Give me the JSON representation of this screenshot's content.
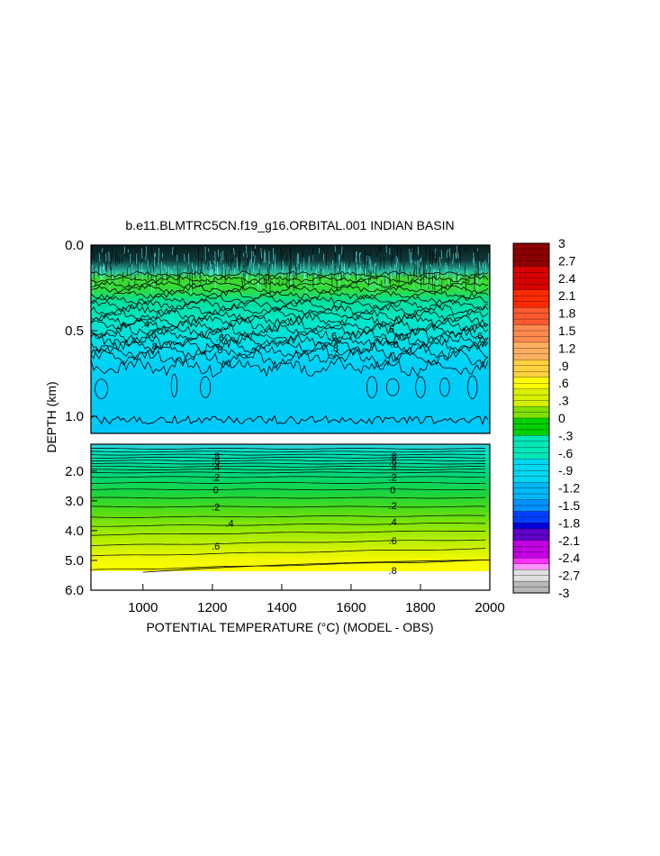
{
  "chart_data": {
    "type": "heatmap",
    "title": "b.e11.BLMTRC5CN.f19_g16.ORBITAL.001 INDIAN BASIN",
    "xlabel": "POTENTIAL TEMPERATURE (°C) (MODEL - OBS)",
    "ylabel": "DEPTH (km)",
    "x_ticks": [
      "1000",
      "1200",
      "1400",
      "1600",
      "1800",
      "2000"
    ],
    "x_tick_values": [
      1000,
      1200,
      1400,
      1600,
      1800,
      2000
    ],
    "xlim": [
      850,
      2000
    ],
    "upper_panel": {
      "ylim": [
        0.0,
        1.1
      ],
      "y_ticks": [
        "0.0",
        "0.5",
        "1.0"
      ],
      "y_tick_values": [
        0.0,
        0.5,
        1.0
      ],
      "contour_labels": [
        {
          "text": ".4",
          "x": 1007,
          "y": 0.46
        },
        {
          "text": ".6",
          "x": 1027,
          "y": 0.52
        },
        {
          "text": ".8",
          "x": 1030,
          "y": 0.59
        },
        {
          "text": ".6",
          "x": 1222,
          "y": 0.54
        },
        {
          "text": ".8",
          "x": 1218,
          "y": 0.61
        },
        {
          "text": ".6",
          "x": 1547,
          "y": 0.53
        },
        {
          "text": ".8",
          "x": 1552,
          "y": 0.6
        },
        {
          "text": ".6",
          "x": 1713,
          "y": 0.49
        },
        {
          "text": ".8",
          "x": 1725,
          "y": 0.58
        },
        {
          "text": ".6",
          "x": 1968,
          "y": 0.53
        }
      ]
    },
    "lower_panel": {
      "ylim": [
        1.1,
        6.0
      ],
      "y_ticks": [
        "2.0",
        "3.0",
        "4.0",
        "5.0",
        "6.0"
      ],
      "y_tick_values": [
        2.0,
        3.0,
        4.0,
        5.0,
        6.0
      ],
      "bottom_of_data_km": 5.4,
      "contour_labels": [
        {
          "text": ".8",
          "x": 1210,
          "y": 1.5
        },
        {
          "text": ".6",
          "x": 1210,
          "y": 1.68
        },
        {
          "text": ".4",
          "x": 1210,
          "y": 1.86
        },
        {
          "text": ".2",
          "x": 1210,
          "y": 2.2
        },
        {
          "text": "0",
          "x": 1210,
          "y": 2.62
        },
        {
          "text": ".2",
          "x": 1210,
          "y": 3.2
        },
        {
          "text": ".4",
          "x": 1250,
          "y": 3.75
        },
        {
          "text": ".6",
          "x": 1210,
          "y": 4.52
        },
        {
          "text": ".8",
          "x": 1720,
          "y": 1.5
        },
        {
          "text": ".6",
          "x": 1720,
          "y": 1.68
        },
        {
          "text": ".4",
          "x": 1720,
          "y": 1.86
        },
        {
          "text": ".2",
          "x": 1720,
          "y": 2.2
        },
        {
          "text": "0",
          "x": 1720,
          "y": 2.62
        },
        {
          "text": ".2",
          "x": 1720,
          "y": 3.15
        },
        {
          "text": ".4",
          "x": 1720,
          "y": 3.7
        },
        {
          "text": ".6",
          "x": 1720,
          "y": 4.33
        },
        {
          "text": ".8",
          "x": 1720,
          "y": 5.33
        }
      ]
    },
    "colorbar": {
      "labels": [
        "3",
        "2.7",
        "2.4",
        "2.1",
        "1.8",
        "1.5",
        "1.2",
        ".9",
        ".6",
        ".3",
        "0",
        "-.3",
        "-.6",
        "-.9",
        "-1.2",
        "-1.5",
        "-1.8",
        "-2.1",
        "-2.4",
        "-2.7",
        "-3"
      ],
      "values": [
        3,
        2.7,
        2.4,
        2.1,
        1.8,
        1.5,
        1.2,
        0.9,
        0.6,
        0.3,
        0,
        -0.3,
        -0.6,
        -0.9,
        -1.2,
        -1.5,
        -1.8,
        -2.1,
        -2.4,
        -2.7,
        -3
      ],
      "range": [
        -3,
        3
      ],
      "color_stops": [
        {
          "v": 3.0,
          "c": "#8c0000"
        },
        {
          "v": 2.6,
          "c": "#d80000"
        },
        {
          "v": 2.2,
          "c": "#ff2a00"
        },
        {
          "v": 1.9,
          "c": "#ff5a30"
        },
        {
          "v": 1.6,
          "c": "#ff8a50"
        },
        {
          "v": 1.3,
          "c": "#ffb060"
        },
        {
          "v": 1.0,
          "c": "#ffd040"
        },
        {
          "v": 0.75,
          "c": "#ffff00"
        },
        {
          "v": 0.5,
          "c": "#d8f000"
        },
        {
          "v": 0.25,
          "c": "#80e000"
        },
        {
          "v": 0.0,
          "c": "#00d000"
        },
        {
          "v": -0.3,
          "c": "#00e8b8"
        },
        {
          "v": -0.7,
          "c": "#00d8f0"
        },
        {
          "v": -1.1,
          "c": "#00b8f8"
        },
        {
          "v": -1.4,
          "c": "#0090ff"
        },
        {
          "v": -1.6,
          "c": "#0040ff"
        },
        {
          "v": -1.8,
          "c": "#0000d8"
        },
        {
          "v": -1.95,
          "c": "#6000c8"
        },
        {
          "v": -2.15,
          "c": "#c000e0"
        },
        {
          "v": -2.35,
          "c": "#ff30ff"
        },
        {
          "v": -2.5,
          "c": "#ff90ff"
        },
        {
          "v": -2.62,
          "c": "#e0e0e0"
        },
        {
          "v": -2.8,
          "c": "#b8b8b8"
        },
        {
          "v": -3.0,
          "c": "#8a8a8a"
        }
      ]
    }
  }
}
